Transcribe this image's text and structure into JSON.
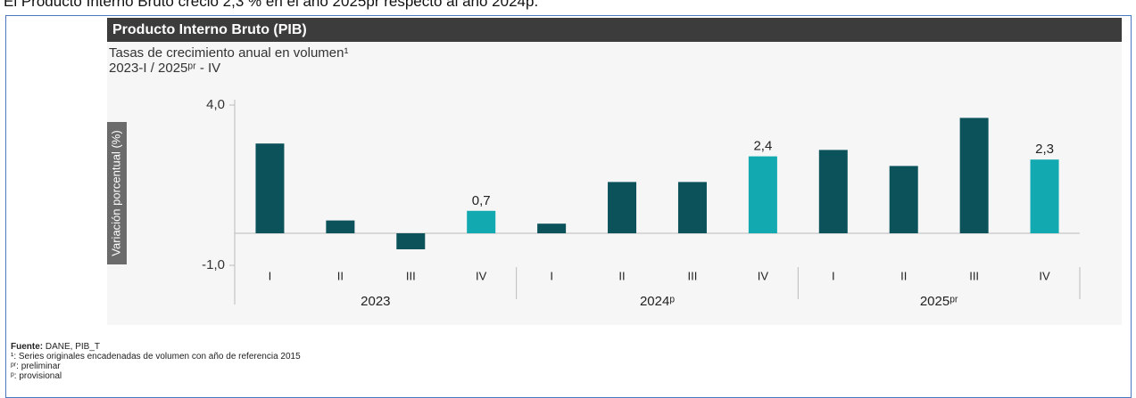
{
  "lead_text": "El Producto Interno Bruto creció 2,3 % en el año 2025pr respecto al año 2024p.",
  "chart_data": {
    "type": "bar",
    "title": "Producto Interno Bruto (PIB)",
    "subtitle": "Tasas de crecimiento anual en volumen¹",
    "period": "2023-I / 2025ᵖʳ - IV",
    "y_label": "Variación porcentual (%)",
    "categories": [
      "I",
      "II",
      "III",
      "IV",
      "I",
      "II",
      "III",
      "IV",
      "I",
      "II",
      "III",
      "IV"
    ],
    "groups": [
      "2023",
      "2024ᵖ",
      "2025ᵖʳ"
    ],
    "values": [
      2.8,
      0.4,
      -0.5,
      0.7,
      0.3,
      1.6,
      1.6,
      2.4,
      2.6,
      2.1,
      3.6,
      2.3
    ],
    "value_labels": [
      null,
      null,
      null,
      "0,7",
      null,
      null,
      null,
      "2,4",
      null,
      null,
      null,
      "2,3"
    ],
    "colors": [
      "#0b525b",
      "#0b525b",
      "#0b525b",
      "#12a9b0",
      "#0b525b",
      "#0b525b",
      "#0b525b",
      "#12a9b0",
      "#0b525b",
      "#0b525b",
      "#0b525b",
      "#12a9b0"
    ],
    "ylim": [
      -1,
      4
    ],
    "yticks": [
      {
        "value": 4,
        "label": "4,0"
      },
      {
        "value": -1,
        "label": "-1,0"
      }
    ]
  },
  "notes": {
    "source_label": "Fuente:",
    "source": "DANE, PIB_T",
    "note1": "¹: Series originales encadenadas de volumen con año de referencia 2015",
    "note2": "ᵖʳ: preliminar",
    "note3": "ᵖ: provisional"
  }
}
